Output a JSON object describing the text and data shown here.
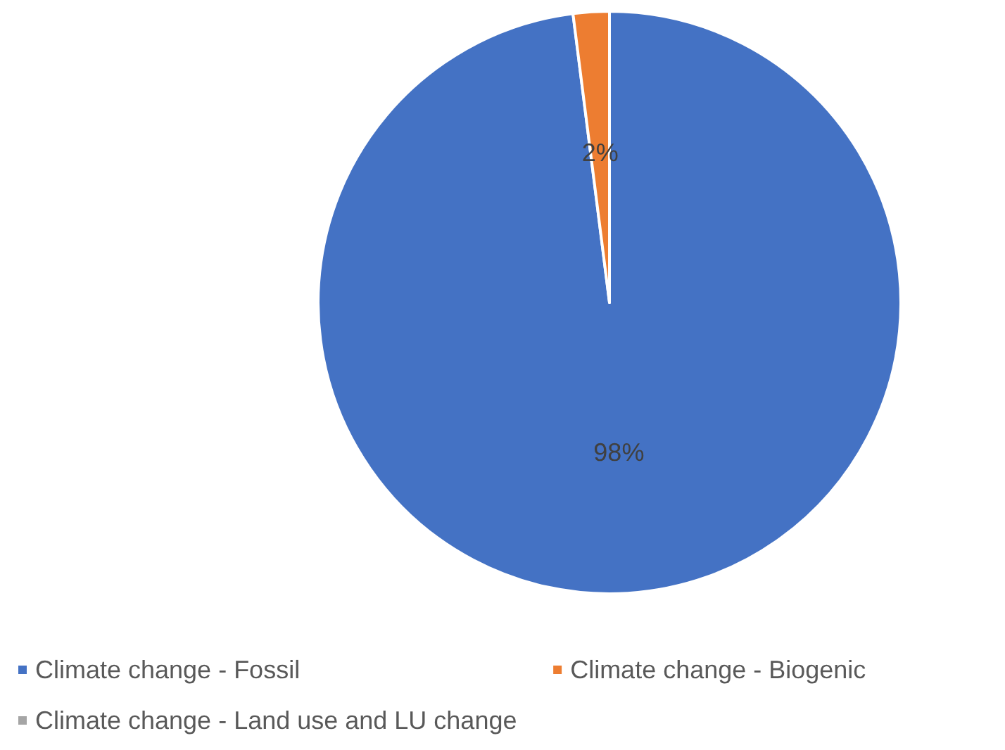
{
  "chart_data": {
    "type": "pie",
    "categories": [
      "Climate change - Fossil",
      "Climate change - Biogenic",
      "Climate change - Land use and LU change"
    ],
    "values": [
      98,
      2,
      0
    ],
    "colors": [
      "#4472c4",
      "#ed7d31",
      "#a5a5a5"
    ],
    "value_labels": [
      "98%",
      "2%",
      null
    ],
    "legend": "bottom"
  }
}
